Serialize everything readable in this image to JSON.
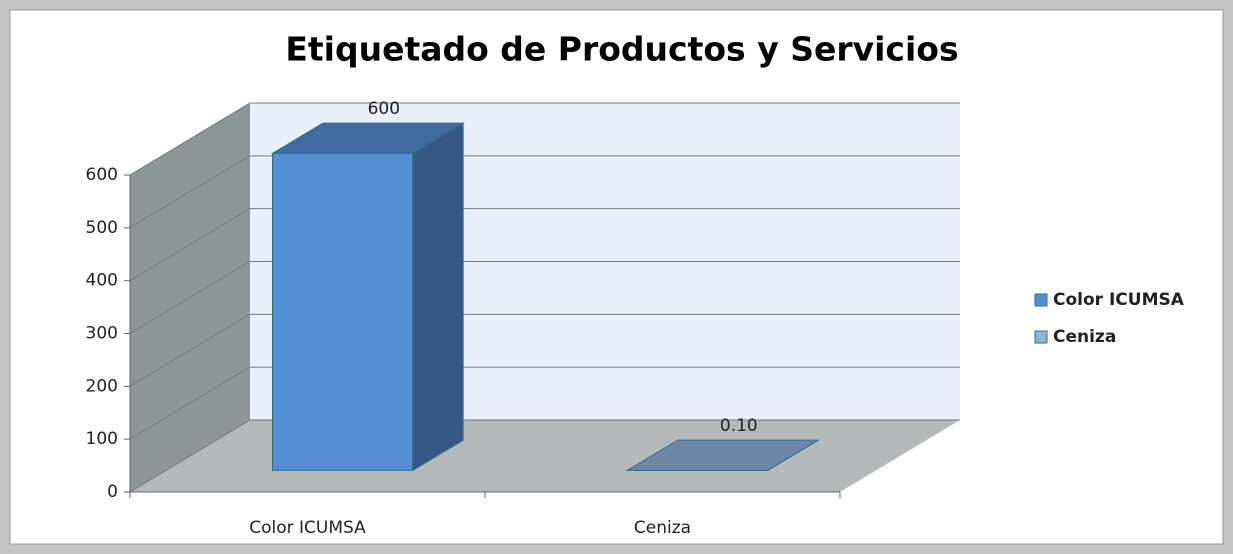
{
  "chart_data": {
    "type": "bar3d",
    "title": "Etiquetado de Productos y Servicios",
    "categories": [
      "Color ICUMSA",
      "Ceniza"
    ],
    "series": [
      {
        "name": "Color ICUMSA",
        "color": "#558ed5",
        "values": [
          600,
          null
        ],
        "value_labels": [
          "600",
          null
        ]
      },
      {
        "name": "Ceniza",
        "color": "#8fb4dc",
        "values": [
          null,
          0.1
        ],
        "value_labels": [
          null,
          "0.10"
        ]
      }
    ],
    "ylim": [
      0,
      600
    ],
    "yticks": [
      0,
      100,
      200,
      300,
      400,
      500,
      600
    ],
    "grid": true,
    "legend": "right"
  }
}
